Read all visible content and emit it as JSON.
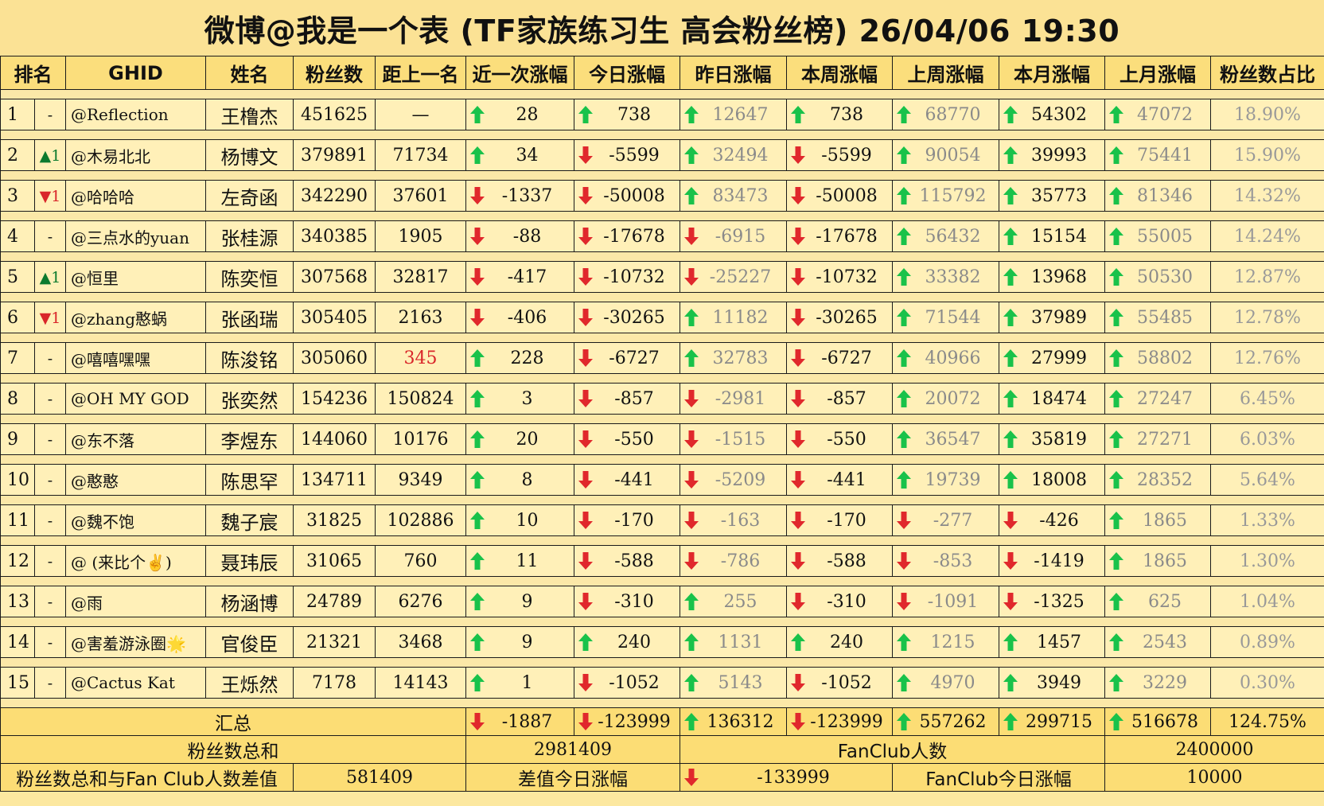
{
  "title": "微博@我是一个表 (TF家族练习生 高会粉丝榜)  26/04/06 19:30",
  "headers": [
    "排名",
    "GHID",
    "姓名",
    "粉丝数",
    "距上一名",
    "近一次涨幅",
    "今日涨幅",
    "昨日涨幅",
    "本周涨幅",
    "上周涨幅",
    "本月涨幅",
    "上月涨幅",
    "粉丝数占比"
  ],
  "rows": [
    {
      "rank": "1",
      "move": "-",
      "move_dir": "none",
      "move_n": "",
      "handle": "@Reflection",
      "name": "王橹杰",
      "fans": "451625",
      "gap": "—",
      "gap_red": false,
      "c": [
        [
          "up",
          "28"
        ],
        [
          "up",
          "738"
        ],
        [
          "up",
          "12647"
        ],
        [
          "up",
          "738"
        ],
        [
          "up",
          "68770"
        ],
        [
          "up",
          "54302"
        ],
        [
          "up",
          "47072"
        ]
      ],
      "pct": "18.90%"
    },
    {
      "rank": "2",
      "move": "▲",
      "move_dir": "up",
      "move_n": "1",
      "handle": "@木易北北",
      "name": "杨博文",
      "fans": "379891",
      "gap": "71734",
      "gap_red": false,
      "c": [
        [
          "up",
          "34"
        ],
        [
          "down",
          "-5599"
        ],
        [
          "up",
          "32494"
        ],
        [
          "down",
          "-5599"
        ],
        [
          "up",
          "90054"
        ],
        [
          "up",
          "39993"
        ],
        [
          "up",
          "75441"
        ]
      ],
      "pct": "15.90%"
    },
    {
      "rank": "3",
      "move": "▼",
      "move_dir": "down",
      "move_n": "1",
      "handle": "@哈哈哈",
      "name": "左奇函",
      "fans": "342290",
      "gap": "37601",
      "gap_red": false,
      "c": [
        [
          "down",
          "-1337"
        ],
        [
          "down",
          "-50008"
        ],
        [
          "up",
          "83473"
        ],
        [
          "down",
          "-50008"
        ],
        [
          "up",
          "115792"
        ],
        [
          "up",
          "35773"
        ],
        [
          "up",
          "81346"
        ]
      ],
      "pct": "14.32%"
    },
    {
      "rank": "4",
      "move": "-",
      "move_dir": "none",
      "move_n": "",
      "handle": "@三点水的yuan",
      "name": "张桂源",
      "fans": "340385",
      "gap": "1905",
      "gap_red": false,
      "c": [
        [
          "down",
          "-88"
        ],
        [
          "down",
          "-17678"
        ],
        [
          "down",
          "-6915"
        ],
        [
          "down",
          "-17678"
        ],
        [
          "up",
          "56432"
        ],
        [
          "up",
          "15154"
        ],
        [
          "up",
          "55005"
        ]
      ],
      "pct": "14.24%"
    },
    {
      "rank": "5",
      "move": "▲",
      "move_dir": "up",
      "move_n": "1",
      "handle": "@恒里",
      "name": "陈奕恒",
      "fans": "307568",
      "gap": "32817",
      "gap_red": false,
      "c": [
        [
          "down",
          "-417"
        ],
        [
          "down",
          "-10732"
        ],
        [
          "down",
          "-25227"
        ],
        [
          "down",
          "-10732"
        ],
        [
          "up",
          "33382"
        ],
        [
          "up",
          "13968"
        ],
        [
          "up",
          "50530"
        ]
      ],
      "pct": "12.87%"
    },
    {
      "rank": "6",
      "move": "▼",
      "move_dir": "down",
      "move_n": "1",
      "handle": "@zhang憨蜗",
      "name": "张函瑞",
      "fans": "305405",
      "gap": "2163",
      "gap_red": false,
      "c": [
        [
          "down",
          "-406"
        ],
        [
          "down",
          "-30265"
        ],
        [
          "up",
          "11182"
        ],
        [
          "down",
          "-30265"
        ],
        [
          "up",
          "71544"
        ],
        [
          "up",
          "37989"
        ],
        [
          "up",
          "55485"
        ]
      ],
      "pct": "12.78%"
    },
    {
      "rank": "7",
      "move": "-",
      "move_dir": "none",
      "move_n": "",
      "handle": "@嘻嘻嘿嘿",
      "name": "陈浚铭",
      "fans": "305060",
      "gap": "345",
      "gap_red": true,
      "c": [
        [
          "up",
          "228"
        ],
        [
          "down",
          "-6727"
        ],
        [
          "up",
          "32783"
        ],
        [
          "down",
          "-6727"
        ],
        [
          "up",
          "40966"
        ],
        [
          "up",
          "27999"
        ],
        [
          "up",
          "58802"
        ]
      ],
      "pct": "12.76%"
    },
    {
      "rank": "8",
      "move": "-",
      "move_dir": "none",
      "move_n": "",
      "handle": "@OH MY GOD",
      "name": "张奕然",
      "fans": "154236",
      "gap": "150824",
      "gap_red": false,
      "c": [
        [
          "up",
          "3"
        ],
        [
          "down",
          "-857"
        ],
        [
          "down",
          "-2981"
        ],
        [
          "down",
          "-857"
        ],
        [
          "up",
          "20072"
        ],
        [
          "up",
          "18474"
        ],
        [
          "up",
          "27247"
        ]
      ],
      "pct": "6.45%"
    },
    {
      "rank": "9",
      "move": "-",
      "move_dir": "none",
      "move_n": "",
      "handle": "@东不落",
      "name": "李煜东",
      "fans": "144060",
      "gap": "10176",
      "gap_red": false,
      "c": [
        [
          "up",
          "20"
        ],
        [
          "down",
          "-550"
        ],
        [
          "down",
          "-1515"
        ],
        [
          "down",
          "-550"
        ],
        [
          "up",
          "36547"
        ],
        [
          "up",
          "35819"
        ],
        [
          "up",
          "27271"
        ]
      ],
      "pct": "6.03%"
    },
    {
      "rank": "10",
      "move": "-",
      "move_dir": "none",
      "move_n": "",
      "handle": "@憨憨",
      "name": "陈思罕",
      "fans": "134711",
      "gap": "9349",
      "gap_red": false,
      "c": [
        [
          "up",
          "8"
        ],
        [
          "down",
          "-441"
        ],
        [
          "down",
          "-5209"
        ],
        [
          "down",
          "-441"
        ],
        [
          "up",
          "19739"
        ],
        [
          "up",
          "18008"
        ],
        [
          "up",
          "28352"
        ]
      ],
      "pct": "5.64%"
    },
    {
      "rank": "11",
      "move": "-",
      "move_dir": "none",
      "move_n": "",
      "handle": "@魏不饱",
      "name": "魏子宸",
      "fans": "31825",
      "gap": "102886",
      "gap_red": false,
      "c": [
        [
          "up",
          "10"
        ],
        [
          "down",
          "-170"
        ],
        [
          "down",
          "-163"
        ],
        [
          "down",
          "-170"
        ],
        [
          "down",
          "-277"
        ],
        [
          "down",
          "-426"
        ],
        [
          "up",
          "1865"
        ]
      ],
      "pct": "1.33%"
    },
    {
      "rank": "12",
      "move": "-",
      "move_dir": "none",
      "move_n": "",
      "handle": "@ (来比个✌️)",
      "name": "聂玮辰",
      "fans": "31065",
      "gap": "760",
      "gap_red": false,
      "c": [
        [
          "up",
          "11"
        ],
        [
          "down",
          "-588"
        ],
        [
          "down",
          "-786"
        ],
        [
          "down",
          "-588"
        ],
        [
          "down",
          "-853"
        ],
        [
          "down",
          "-1419"
        ],
        [
          "up",
          "1865"
        ]
      ],
      "pct": "1.30%"
    },
    {
      "rank": "13",
      "move": "-",
      "move_dir": "none",
      "move_n": "",
      "handle": "@雨",
      "name": "杨涵博",
      "fans": "24789",
      "gap": "6276",
      "gap_red": false,
      "c": [
        [
          "up",
          "9"
        ],
        [
          "down",
          "-310"
        ],
        [
          "up",
          "255"
        ],
        [
          "down",
          "-310"
        ],
        [
          "down",
          "-1091"
        ],
        [
          "down",
          "-1325"
        ],
        [
          "up",
          "625"
        ]
      ],
      "pct": "1.04%"
    },
    {
      "rank": "14",
      "move": "-",
      "move_dir": "none",
      "move_n": "",
      "handle": "@害羞游泳圈🌟",
      "name": "官俊臣",
      "fans": "21321",
      "gap": "3468",
      "gap_red": false,
      "c": [
        [
          "up",
          "9"
        ],
        [
          "up",
          "240"
        ],
        [
          "up",
          "1131"
        ],
        [
          "up",
          "240"
        ],
        [
          "up",
          "1215"
        ],
        [
          "up",
          "1457"
        ],
        [
          "up",
          "2543"
        ]
      ],
      "pct": "0.89%"
    },
    {
      "rank": "15",
      "move": "-",
      "move_dir": "none",
      "move_n": "",
      "handle": "@Cactus Kat",
      "name": "王烁然",
      "fans": "7178",
      "gap": "14143",
      "gap_red": false,
      "c": [
        [
          "up",
          "1"
        ],
        [
          "down",
          "-1052"
        ],
        [
          "up",
          "5143"
        ],
        [
          "down",
          "-1052"
        ],
        [
          "up",
          "4970"
        ],
        [
          "up",
          "3949"
        ],
        [
          "up",
          "3229"
        ]
      ],
      "pct": "0.30%"
    }
  ],
  "summary": {
    "total_label": "汇总",
    "total_c": [
      [
        "down",
        "-1887"
      ],
      [
        "down",
        "-123999"
      ],
      [
        "up",
        "136312"
      ],
      [
        "down",
        "-123999"
      ],
      [
        "up",
        "557262"
      ],
      [
        "up",
        "299715"
      ],
      [
        "up",
        "516678"
      ]
    ],
    "total_pct": "124.75%",
    "fans_sum_label": "粉丝数总和",
    "fans_sum": "2981409",
    "fanclub_label": "FanClub人数",
    "fanclub": "2400000",
    "diff_label": "粉丝数总和与Fan Club人数差值",
    "diff": "581409",
    "diff_today_label": "差值今日涨幅",
    "diff_today_dir": "down",
    "diff_today": "-133999",
    "fanclub_today_label": "FanClub今日涨幅",
    "fanclub_today": "10000"
  },
  "colors": {
    "up": "#0c7a2e",
    "down": "#d9262a",
    "arrow_up": "#19c24a",
    "arrow_down": "#e0282c"
  }
}
